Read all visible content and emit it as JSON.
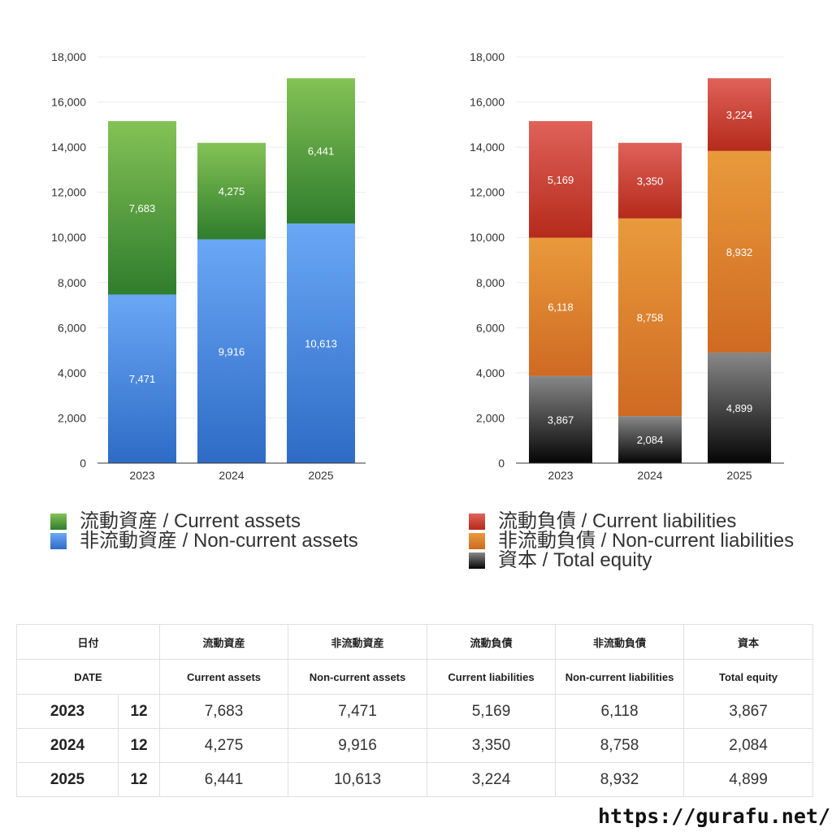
{
  "chart_data": [
    {
      "type": "bar",
      "stacked": true,
      "categories": [
        "2023",
        "2024",
        "2025"
      ],
      "ylim": [
        0,
        18000
      ],
      "yticks": [
        "0",
        "2,000",
        "4,000",
        "6,000",
        "8,000",
        "10,000",
        "12,000",
        "14,000",
        "16,000",
        "18,000"
      ],
      "grid": true,
      "series": [
        {
          "name": "非流動資産 / Non-current assets",
          "values": [
            7471,
            9916,
            10613
          ],
          "labels": [
            "7,471",
            "9,916",
            "10,613"
          ],
          "color_top": "#6aa7f5",
          "color_bottom": "#2e6bc6"
        },
        {
          "name": "流動資産 / Current assets",
          "values": [
            7683,
            4275,
            6441
          ],
          "labels": [
            "7,683",
            "4,275",
            "6,441"
          ],
          "color_top": "#84c255",
          "color_bottom": "#2f7d2d"
        }
      ]
    },
    {
      "type": "bar",
      "stacked": true,
      "categories": [
        "2023",
        "2024",
        "2025"
      ],
      "ylim": [
        0,
        18000
      ],
      "yticks": [
        "0",
        "2,000",
        "4,000",
        "6,000",
        "8,000",
        "10,000",
        "12,000",
        "14,000",
        "16,000",
        "18,000"
      ],
      "grid": true,
      "series": [
        {
          "name": "資本 / Total equity",
          "values": [
            3867,
            2084,
            4899
          ],
          "labels": [
            "3,867",
            "2,084",
            "4,899"
          ],
          "color_top": "#888888",
          "color_bottom": "#050505"
        },
        {
          "name": "非流動負債 / Non-current liabilities",
          "values": [
            6118,
            8758,
            8932
          ],
          "labels": [
            "6,118",
            "8,758",
            "8,932"
          ],
          "color_top": "#e99a3c",
          "color_bottom": "#cf6a22"
        },
        {
          "name": "流動負債 / Current liabilities",
          "values": [
            5169,
            3350,
            3224
          ],
          "labels": [
            "5,169",
            "3,350",
            "3,224"
          ],
          "color_top": "#df6259",
          "color_bottom": "#b52a1b"
        }
      ]
    }
  ],
  "legend_left": [
    {
      "label": "流動資産 / Current assets",
      "color": "#4f9a3a"
    },
    {
      "label": "非流動資産 / Non-current assets",
      "color": "#3f80d9"
    }
  ],
  "legend_right": [
    {
      "label": "流動負債 / Current liabilities",
      "color": "#cc3f30"
    },
    {
      "label": "非流動負債 / Non-current liabilities",
      "color": "#e0822f"
    },
    {
      "label": "資本 / Total equity",
      "color": "#333333"
    }
  ],
  "table": {
    "header_jp": [
      "日付",
      "流動資産",
      "非流動資産",
      "流動負債",
      "非流動負債",
      "資本"
    ],
    "header_en": [
      "DATE",
      "Current assets",
      "Non-current assets",
      "Current liabilities",
      "Non-current liabilities",
      "Total equity"
    ],
    "rows": [
      {
        "year": "2023",
        "month": "12",
        "values": [
          "7,683",
          "7,471",
          "5,169",
          "6,118",
          "3,867"
        ]
      },
      {
        "year": "2024",
        "month": "12",
        "values": [
          "4,275",
          "9,916",
          "3,350",
          "8,758",
          "2,084"
        ]
      },
      {
        "year": "2025",
        "month": "12",
        "values": [
          "6,441",
          "10,613",
          "3,224",
          "8,932",
          "4,899"
        ]
      }
    ]
  },
  "footer_url": "https://gurafu.net/"
}
